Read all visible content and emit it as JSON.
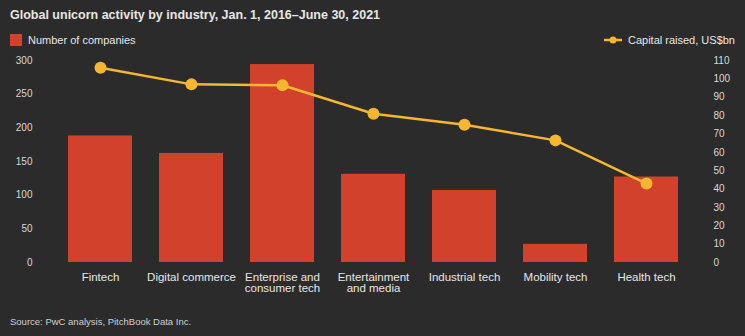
{
  "chart_data": {
    "type": "bar",
    "title": "Global unicorn activity by industry, Jan. 1, 2016–June 30, 2021",
    "source": "Source: PwC analysis, PitchBook Data Inc.",
    "categories": [
      "Fintech",
      "Digital commerce",
      "Enterprise and consumer tech",
      "Entertainment and media",
      "Industrial tech",
      "Mobility tech",
      "Health tech"
    ],
    "series": [
      {
        "name": "Number of companies",
        "type": "bar",
        "color": "#d2412b",
        "values": [
          188,
          162,
          294,
          131,
          107,
          27,
          127
        ]
      },
      {
        "name": "Capital raised, US$bn",
        "type": "line",
        "color": "#f5b731",
        "marker": "circle",
        "axis": "y2",
        "values": [
          106,
          97,
          96.5,
          81,
          75,
          66.5,
          43
        ]
      }
    ],
    "ylim": [
      0,
      300
    ],
    "yticks": [
      0,
      50,
      100,
      150,
      200,
      250,
      300
    ],
    "y2lim": [
      0,
      110
    ],
    "y2ticks": [
      0,
      10,
      20,
      30,
      40,
      50,
      60,
      70,
      80,
      90,
      100,
      110
    ],
    "grid": false,
    "legend": "top"
  }
}
